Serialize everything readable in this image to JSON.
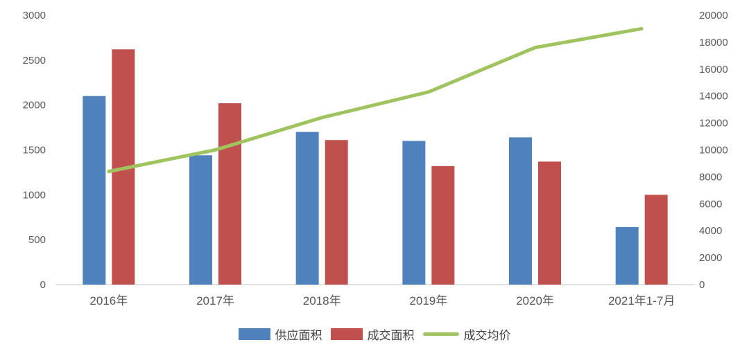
{
  "chart_data": {
    "type": "bar",
    "subtype": "grouped-bars-with-line",
    "title": "",
    "categories": [
      "2016年",
      "2017年",
      "2018年",
      "2019年",
      "2020年",
      "2021年1-7月"
    ],
    "series": [
      {
        "name": "供应面积",
        "type": "bar",
        "axis": "left",
        "color": "#4F81BD",
        "values": [
          2100,
          1440,
          1700,
          1600,
          1640,
          640
        ]
      },
      {
        "name": "成交面积",
        "type": "bar",
        "axis": "left",
        "color": "#C0504D",
        "values": [
          2620,
          2020,
          1610,
          1320,
          1370,
          1000
        ]
      },
      {
        "name": "成交均价",
        "type": "line",
        "axis": "right",
        "color": "#9FC45F",
        "values": [
          8400,
          10000,
          12400,
          14300,
          17600,
          19000
        ]
      }
    ],
    "left_axis": {
      "min": 0,
      "max": 3000,
      "step": 500,
      "ticks": [
        0,
        500,
        1000,
        1500,
        2000,
        2500,
        3000
      ]
    },
    "right_axis": {
      "min": 0,
      "max": 20000,
      "step": 2000,
      "ticks": [
        0,
        2000,
        4000,
        6000,
        8000,
        10000,
        12000,
        14000,
        16000,
        18000,
        20000
      ]
    },
    "xlabel": "",
    "ylabel": "",
    "grid": false,
    "legend_position": "bottom",
    "baseline_color": "#D9D9D9",
    "axis_text_color": "#595959"
  }
}
